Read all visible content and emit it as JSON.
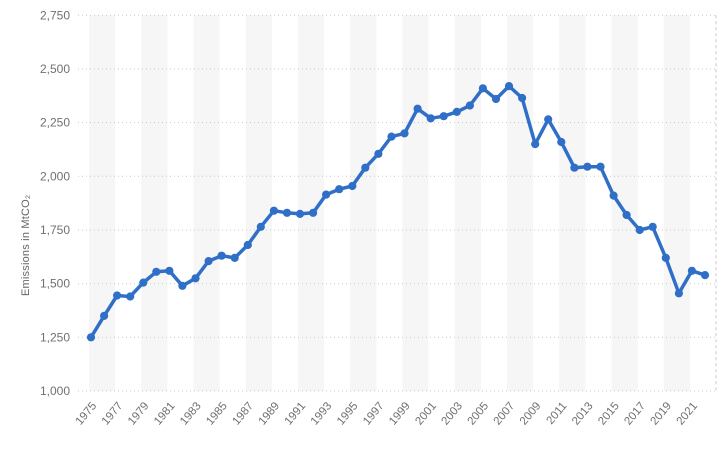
{
  "chart_data": {
    "type": "line",
    "title": "",
    "xlabel": "",
    "ylabel": "Emissions in MtCO₂",
    "legend": "none",
    "grid": "horizontal-dotted",
    "ylim": [
      1000,
      2750
    ],
    "x": [
      1975,
      1976,
      1977,
      1978,
      1979,
      1980,
      1981,
      1982,
      1983,
      1984,
      1985,
      1986,
      1987,
      1988,
      1989,
      1990,
      1991,
      1992,
      1993,
      1994,
      1995,
      1996,
      1997,
      1998,
      1999,
      2000,
      2001,
      2002,
      2003,
      2004,
      2005,
      2006,
      2007,
      2008,
      2009,
      2010,
      2011,
      2012,
      2013,
      2014,
      2015,
      2016,
      2017,
      2018,
      2019,
      2020,
      2021,
      2022
    ],
    "series": [
      {
        "name": "Emissions in MtCO₂",
        "values": [
          1250,
          1350,
          1445,
          1440,
          1505,
          1555,
          1560,
          1490,
          1525,
          1605,
          1630,
          1620,
          1680,
          1765,
          1840,
          1830,
          1825,
          1830,
          1915,
          1940,
          1955,
          2040,
          2105,
          2185,
          2200,
          2315,
          2270,
          2280,
          2300,
          2330,
          2410,
          2360,
          2420,
          2365,
          2150,
          2265,
          2160,
          2040,
          2045,
          2045,
          1910,
          1820,
          1750,
          1765,
          1620,
          1455,
          1560,
          1540
        ]
      }
    ],
    "y_ticks": [
      {
        "value": 1000,
        "label": "1,000"
      },
      {
        "value": 1250,
        "label": "1,250"
      },
      {
        "value": 1500,
        "label": "1,500"
      },
      {
        "value": 1750,
        "label": "1,750"
      },
      {
        "value": 2000,
        "label": "2,000"
      },
      {
        "value": 2250,
        "label": "2,250"
      },
      {
        "value": 2500,
        "label": "2,500"
      },
      {
        "value": 2750,
        "label": "2,750"
      }
    ],
    "x_tick_labels": [
      "1975",
      "1977",
      "1979",
      "1981",
      "1983",
      "1985",
      "1987",
      "1989",
      "1991",
      "1993",
      "1995",
      "1997",
      "1999",
      "2001",
      "2003",
      "2005",
      "2007",
      "2009",
      "2011",
      "2013",
      "2015",
      "2017",
      "2019",
      "2021"
    ],
    "colors": {
      "line": "#306fc7",
      "marker": "#306fc7",
      "plot_band": "#f6f6f6",
      "gridline": "#c9c9c9",
      "tick_text": "#707070",
      "axis_title_text": "#666666",
      "background": "#ffffff"
    }
  }
}
